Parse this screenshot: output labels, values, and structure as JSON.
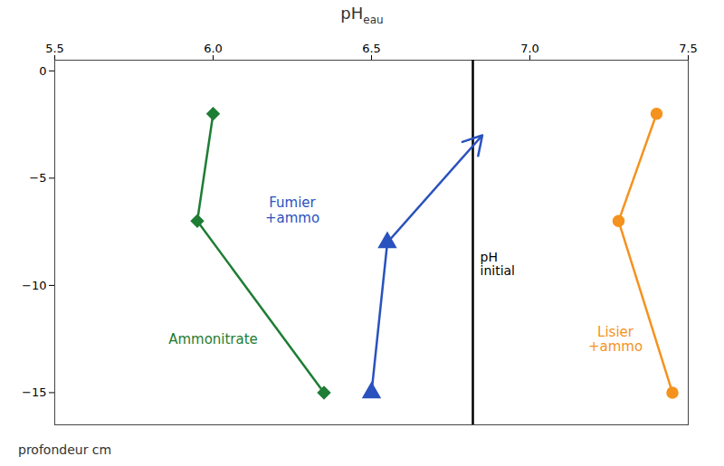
{
  "chart_data": {
    "type": "line",
    "title": "pH",
    "title_subscript": "eau",
    "ylabel": "profondeur cm",
    "xlim": [
      5.5,
      7.5
    ],
    "ylim": [
      -16.5,
      0.5
    ],
    "xticks": [
      5.5,
      {
        "value": 6.0,
        "label": "6.0"
      },
      6.5,
      {
        "value": 7.0,
        "label": "7.0"
      },
      7.5
    ],
    "yticks": [
      0,
      -5,
      -10,
      -15
    ],
    "grid": false,
    "series": [
      {
        "name": "Ammonitrate",
        "color": "#1e7d34",
        "marker": "diamond",
        "x": [
          6.0,
          5.95,
          6.35
        ],
        "values": [
          -2.0,
          -7.0,
          -15.0
        ]
      },
      {
        "name": "Fumier\n+ammo",
        "color": "#2a52be",
        "marker": "triangle",
        "line_style": "arrow",
        "x": [
          6.5,
          6.55,
          6.85
        ],
        "values": [
          -15.0,
          -8.0,
          -3.0
        ]
      },
      {
        "name": "Lisier\n+ammo",
        "color": "#f5921e",
        "marker": "circle",
        "x": [
          7.4,
          7.28,
          7.45
        ],
        "values": [
          -2.0,
          -7.0,
          -15.0
        ]
      }
    ],
    "vlines": [
      {
        "x": 6.82,
        "label": "pH\ninitial",
        "label_y": -9.0,
        "color": "#000000"
      }
    ],
    "annotations": [
      {
        "text": "Ammonitrate",
        "x": 6.0,
        "y": -12.5,
        "color": "#1e7d34"
      },
      {
        "text": "Fumier\n+ammo",
        "x": 6.25,
        "y": -6.5,
        "color": "#2a52be"
      },
      {
        "text": "Lisier\n+ammo",
        "x": 7.27,
        "y": -12.5,
        "color": "#f5921e"
      }
    ]
  }
}
